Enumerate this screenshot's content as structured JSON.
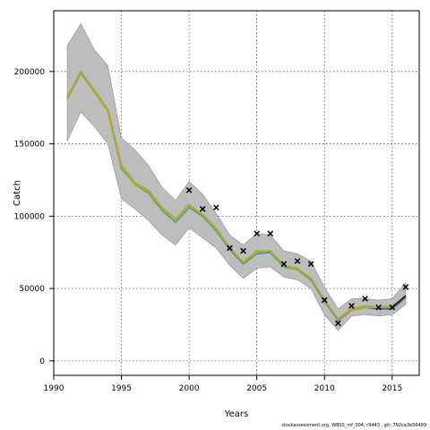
{
  "chart_data": {
    "type": "line",
    "title": "",
    "xlabel": "Years",
    "ylabel": "Catch",
    "xlim": [
      1990,
      2017
    ],
    "ylim": [
      -10000,
      242000
    ],
    "xticks": [
      1990,
      1995,
      2000,
      2005,
      2010,
      2015
    ],
    "yticks": [
      0,
      50000,
      100000,
      150000,
      200000
    ],
    "grid": true,
    "legend": "none",
    "band": {
      "x": [
        1991,
        1992,
        1993,
        1994,
        1995,
        1996,
        1997,
        1998,
        1999,
        2000,
        2001,
        2002,
        2003,
        2004,
        2005,
        2006,
        2007,
        2008,
        2009,
        2010,
        2011,
        2012,
        2013,
        2014,
        2015,
        2016
      ],
      "lower": [
        152000,
        172000,
        162000,
        150000,
        112000,
        105000,
        97000,
        87000,
        80000,
        92000,
        85000,
        78000,
        66000,
        57000,
        64000,
        65000,
        58000,
        56000,
        50000,
        32000,
        21000,
        31000,
        32000,
        31000,
        32000,
        39000
      ],
      "upper": [
        218000,
        233000,
        215000,
        204000,
        154000,
        146000,
        135000,
        120000,
        111000,
        124000,
        115000,
        102000,
        87000,
        80000,
        88000,
        87000,
        76000,
        74000,
        69000,
        51000,
        36000,
        43000,
        43000,
        42000,
        43000,
        54000
      ]
    },
    "series": [
      {
        "color": "#2f61c9",
        "values": [
          182000,
          200000,
          186000,
          173000,
          135000,
          123000,
          117000,
          106000,
          98000,
          107000,
          101000,
          91000,
          78000,
          68000,
          75000,
          76000,
          66000,
          63000,
          57000,
          42000,
          28000,
          35000,
          37000,
          36000,
          36000,
          44000
        ]
      },
      {
        "color": "#2aa7a0",
        "values": [
          181000,
          199000,
          186000,
          173000,
          133000,
          122000,
          116000,
          104000,
          96000,
          106000,
          100000,
          90000,
          77000,
          67000,
          74000,
          75000,
          65000,
          63000,
          56000,
          41000,
          28000,
          36000,
          38000,
          37000,
          37000,
          45000
        ]
      },
      {
        "color": "#7fbf3f",
        "values": [
          182000,
          200000,
          187000,
          174000,
          135000,
          123000,
          118000,
          106000,
          98000,
          108000,
          101000,
          92000,
          78000,
          68000,
          76000,
          76000,
          66000,
          64000,
          57000,
          42000,
          29000,
          36000,
          38000,
          37000,
          38000,
          45000
        ]
      },
      {
        "color": "#c8a020",
        "values": [
          181000,
          200000,
          186000,
          173000,
          134000,
          122000,
          117000,
          105000,
          97000,
          107000,
          101000,
          91000,
          78000,
          68000,
          75000,
          76000,
          66000,
          63000,
          57000,
          42000,
          29000,
          35000,
          37000,
          37000,
          37000,
          45000
        ]
      },
      {
        "color": "#000000",
        "values": [
          null,
          null,
          null,
          null,
          null,
          null,
          null,
          null,
          null,
          null,
          null,
          null,
          null,
          null,
          null,
          null,
          null,
          null,
          null,
          null,
          null,
          null,
          null,
          null,
          37000,
          45000
        ]
      }
    ],
    "observed": {
      "marker": "x",
      "x": [
        2000,
        2001,
        2002,
        2003,
        2004,
        2005,
        2006,
        2007,
        2008,
        2009,
        2010,
        2011,
        2012,
        2013,
        2014,
        2015,
        2016
      ],
      "y": [
        118000,
        105000,
        106000,
        78000,
        76000,
        88000,
        88000,
        67000,
        69000,
        67000,
        42000,
        26000,
        38000,
        43000,
        37000,
        37000,
        51000
      ]
    }
  },
  "footnote": "stockassessment.org, WBSS_mf_004, r9443 , git: 792ca3e56499"
}
